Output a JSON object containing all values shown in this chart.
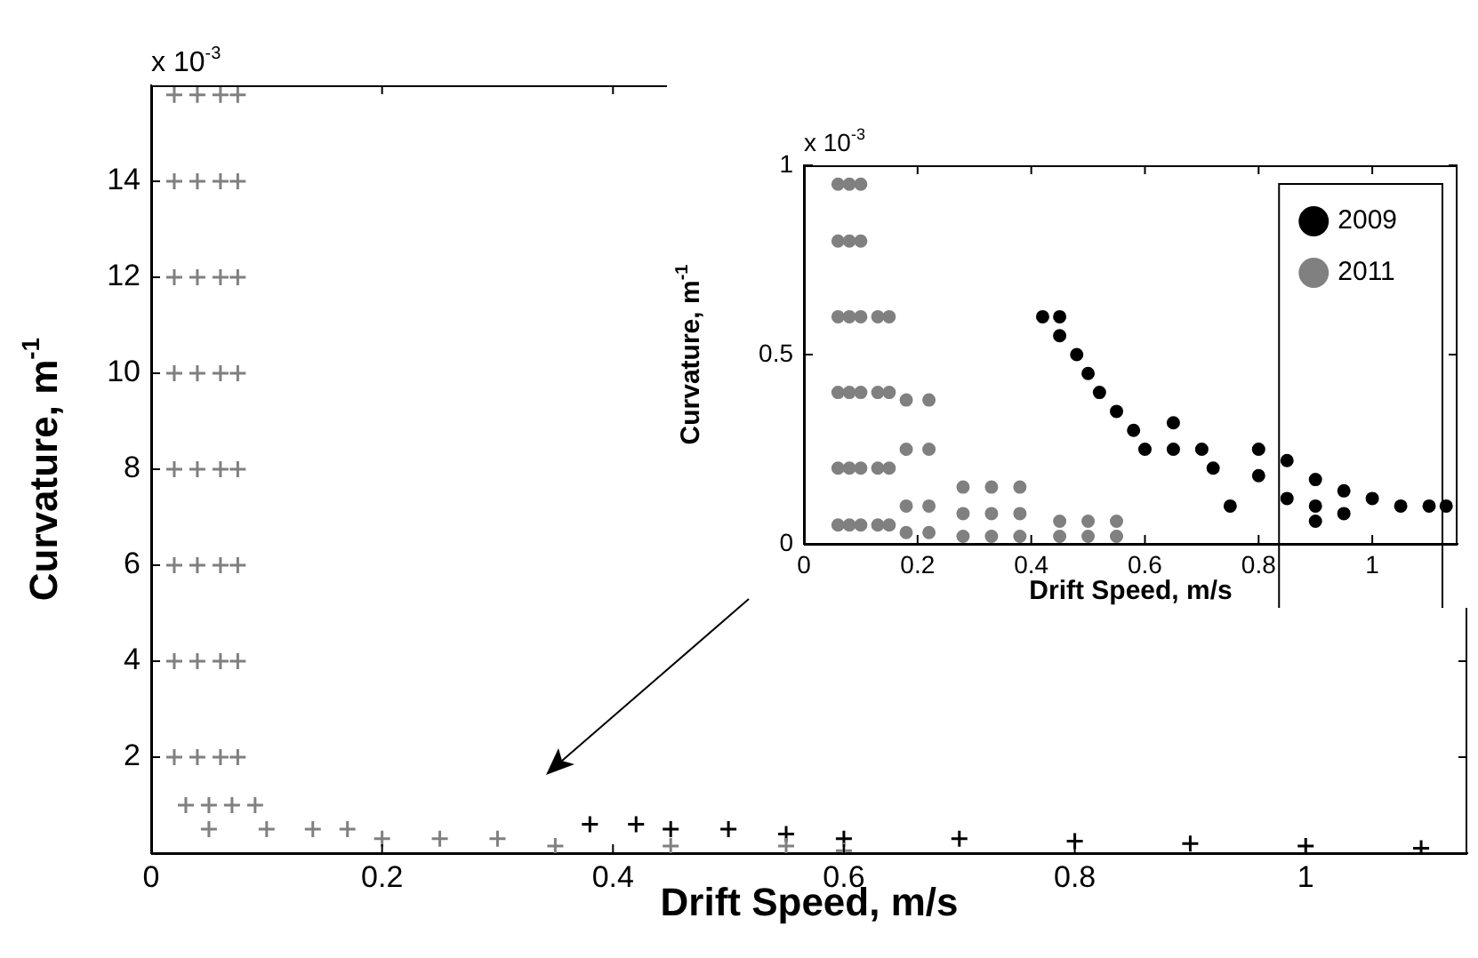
{
  "chart_data": [
    {
      "type": "scatter",
      "xlabel": "Drift Speed, m/s",
      "ylabel": "Curvature, m$^{-1}$",
      "annotations": [
        "x 10$^{-3}$"
      ],
      "xlim": [
        0,
        1.14
      ],
      "ylim": [
        0,
        16
      ],
      "xticks": [
        0,
        0.2,
        0.4,
        0.6,
        0.8,
        1
      ],
      "yticks": [
        2,
        4,
        6,
        8,
        10,
        12,
        14
      ],
      "grid": false,
      "legend": false,
      "marker": "cross",
      "series": [
        {
          "color": "#808080",
          "x": [
            0.02,
            0.04,
            0.06,
            0.075,
            0.02,
            0.04,
            0.06,
            0.075,
            0.02,
            0.04,
            0.06,
            0.075,
            0.02,
            0.04,
            0.06,
            0.075,
            0.02,
            0.04,
            0.06,
            0.075,
            0.02,
            0.04,
            0.06,
            0.075,
            0.02,
            0.04,
            0.06,
            0.075,
            0.02,
            0.04,
            0.06,
            0.075,
            0.03,
            0.05,
            0.07,
            0.09,
            0.05,
            0.1,
            0.14,
            0.17,
            0.2,
            0.25,
            0.3,
            0.35,
            0.45,
            0.55,
            0.6
          ],
          "values": [
            15.8,
            15.8,
            15.8,
            15.8,
            14,
            14,
            14,
            14,
            12,
            12,
            12,
            12,
            10,
            10,
            10,
            10,
            8,
            8,
            8,
            8,
            6,
            6,
            6,
            6,
            4,
            4,
            4,
            4,
            2,
            2,
            2,
            2,
            1,
            1,
            1,
            1,
            0.5,
            0.5,
            0.5,
            0.5,
            0.3,
            0.3,
            0.3,
            0.15,
            0.15,
            0.15,
            0.05
          ]
        },
        {
          "color": "#000000",
          "x": [
            0.38,
            0.42,
            0.45,
            0.5,
            0.55,
            0.6,
            0.7,
            0.8,
            0.9,
            1.0,
            1.1
          ],
          "values": [
            0.6,
            0.6,
            0.5,
            0.5,
            0.4,
            0.3,
            0.3,
            0.25,
            0.2,
            0.15,
            0.1
          ]
        }
      ]
    },
    {
      "type": "scatter",
      "xlabel": "Drift Speed, m/s",
      "ylabel": "Curvature, m$^{-1}$",
      "annotations": [
        "x 10$^{-3}$"
      ],
      "xlim": [
        0,
        1.15
      ],
      "ylim": [
        0,
        1
      ],
      "xticks": [
        0,
        0.2,
        0.4,
        0.6,
        0.8,
        1
      ],
      "yticks": [
        0,
        0.5,
        1
      ],
      "grid": false,
      "legend": "top right",
      "marker": "circle",
      "series": [
        {
          "name": "2009",
          "color": "#000000",
          "x": [
            0.42,
            0.45,
            0.45,
            0.48,
            0.5,
            0.52,
            0.55,
            0.58,
            0.6,
            0.65,
            0.65,
            0.7,
            0.72,
            0.8,
            0.8,
            0.85,
            0.85,
            0.9,
            0.9,
            0.95,
            0.95,
            1.0,
            1.05,
            1.1,
            1.13,
            0.75,
            0.9
          ],
          "values": [
            0.6,
            0.6,
            0.55,
            0.5,
            0.45,
            0.4,
            0.35,
            0.3,
            0.25,
            0.32,
            0.25,
            0.25,
            0.2,
            0.25,
            0.18,
            0.22,
            0.12,
            0.17,
            0.1,
            0.14,
            0.08,
            0.12,
            0.1,
            0.1,
            0.1,
            0.1,
            0.06
          ]
        },
        {
          "name": "2011",
          "color": "#808080",
          "x": [
            0.06,
            0.08,
            0.1,
            0.06,
            0.08,
            0.1,
            0.06,
            0.08,
            0.1,
            0.06,
            0.08,
            0.1,
            0.06,
            0.08,
            0.1,
            0.06,
            0.08,
            0.1,
            0.13,
            0.15,
            0.13,
            0.15,
            0.13,
            0.15,
            0.13,
            0.15,
            0.18,
            0.22,
            0.18,
            0.22,
            0.18,
            0.22,
            0.18,
            0.22,
            0.28,
            0.33,
            0.38,
            0.28,
            0.33,
            0.38,
            0.28,
            0.33,
            0.38,
            0.45,
            0.5,
            0.55,
            0.45,
            0.5,
            0.55
          ],
          "values": [
            0.95,
            0.95,
            0.95,
            0.8,
            0.8,
            0.8,
            0.6,
            0.6,
            0.6,
            0.4,
            0.4,
            0.4,
            0.2,
            0.2,
            0.2,
            0.05,
            0.05,
            0.05,
            0.6,
            0.6,
            0.4,
            0.4,
            0.2,
            0.2,
            0.05,
            0.05,
            0.38,
            0.38,
            0.25,
            0.25,
            0.1,
            0.1,
            0.03,
            0.03,
            0.15,
            0.15,
            0.15,
            0.08,
            0.08,
            0.08,
            0.02,
            0.02,
            0.02,
            0.06,
            0.06,
            0.06,
            0.02,
            0.02,
            0.02
          ]
        }
      ]
    }
  ]
}
